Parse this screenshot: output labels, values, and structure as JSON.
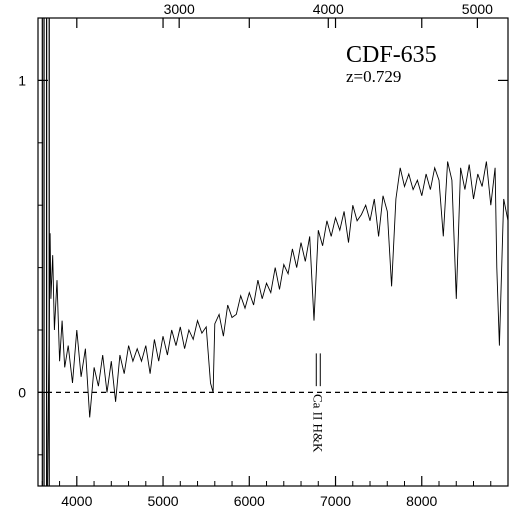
{
  "chart_data": {
    "type": "line",
    "object_name": "CDF-635",
    "redshift_label": "z=0.729",
    "annotation": "Ca II H&K",
    "annotation_x": 6800,
    "title": "",
    "xlabel": "",
    "ylabel": "",
    "xlim": [
      3550,
      9000
    ],
    "ylim": [
      -0.3,
      1.2
    ],
    "x_ticks": [
      4000,
      5000,
      6000,
      7000,
      8000
    ],
    "x_tick_labels": [
      "4000",
      "5000",
      "6000",
      "7000",
      "8000"
    ],
    "top_axis_ticks": [
      3000,
      4000,
      5000
    ],
    "top_axis_tick_labels": [
      "3000",
      "4000",
      "5000"
    ],
    "redshift": 0.729,
    "y_ticks": [
      0,
      1
    ],
    "y_tick_labels": [
      "0",
      "1"
    ],
    "zero_line": "dashed",
    "grid": false,
    "series": [
      {
        "values_x": [
          3660,
          3690,
          3700,
          3720,
          3740,
          3770,
          3800,
          3830,
          3860,
          3900,
          3950,
          4000,
          4050,
          4100,
          4150,
          4200,
          4250,
          4300,
          4350,
          4400,
          4450,
          4500,
          4550,
          4600,
          4650,
          4700,
          4750,
          4800,
          4850,
          4900,
          4950,
          5000,
          5050,
          5100,
          5150,
          5200,
          5250,
          5300,
          5350,
          5400,
          5450,
          5500,
          5550,
          5580,
          5600,
          5650,
          5700,
          5750,
          5800,
          5850,
          5900,
          5950,
          6000,
          6050,
          6100,
          6150,
          6200,
          6250,
          6300,
          6350,
          6400,
          6450,
          6500,
          6550,
          6600,
          6650,
          6700,
          6750,
          6800,
          6850,
          6900,
          6950,
          7000,
          7050,
          7100,
          7150,
          7200,
          7250,
          7300,
          7350,
          7400,
          7450,
          7500,
          7550,
          7600,
          7650,
          7700,
          7750,
          7800,
          7850,
          7900,
          7950,
          8000,
          8050,
          8100,
          8150,
          8200,
          8250,
          8300,
          8350,
          8400,
          8450,
          8500,
          8550,
          8600,
          8650,
          8700,
          8750,
          8800,
          8850,
          8870,
          8900,
          8950,
          9000
        ],
        "values_y": [
          -0.3,
          0.51,
          0.3,
          0.44,
          0.2,
          0.36,
          0.1,
          0.23,
          0.08,
          0.15,
          0.03,
          0.2,
          0.05,
          0.14,
          -0.08,
          0.08,
          0.02,
          0.12,
          0.0,
          0.1,
          -0.03,
          0.12,
          0.06,
          0.15,
          0.1,
          0.14,
          0.1,
          0.15,
          0.06,
          0.17,
          0.1,
          0.18,
          0.12,
          0.2,
          0.15,
          0.21,
          0.14,
          0.2,
          0.17,
          0.23,
          0.19,
          0.21,
          0.03,
          0.0,
          0.22,
          0.25,
          0.18,
          0.28,
          0.24,
          0.25,
          0.31,
          0.27,
          0.32,
          0.28,
          0.36,
          0.3,
          0.35,
          0.32,
          0.4,
          0.33,
          0.41,
          0.38,
          0.46,
          0.4,
          0.48,
          0.42,
          0.5,
          0.23,
          0.52,
          0.47,
          0.55,
          0.5,
          0.56,
          0.52,
          0.58,
          0.48,
          0.6,
          0.55,
          0.57,
          0.6,
          0.55,
          0.62,
          0.5,
          0.63,
          0.58,
          0.34,
          0.62,
          0.72,
          0.66,
          0.7,
          0.65,
          0.68,
          0.63,
          0.7,
          0.65,
          0.72,
          0.68,
          0.5,
          0.74,
          0.68,
          0.3,
          0.72,
          0.65,
          0.73,
          0.62,
          0.7,
          0.66,
          0.74,
          0.6,
          0.72,
          0.4,
          0.15,
          0.62,
          0.55
        ]
      }
    ]
  }
}
